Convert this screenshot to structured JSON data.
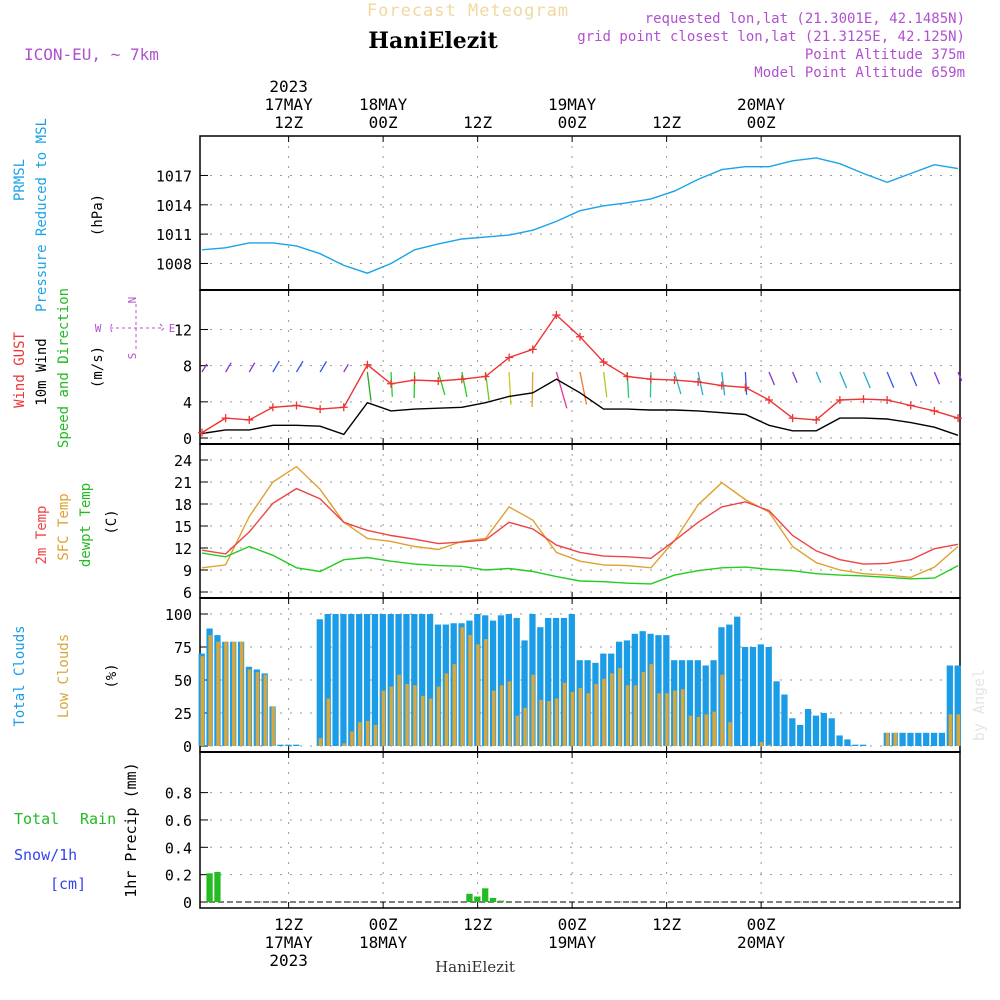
{
  "header": {
    "title": "Forecast Meteogram",
    "station": "HaniElezit",
    "model": "ICON-EU, ~ 7km",
    "requested": "requested lon,lat (21.3001E, 42.1485N)",
    "gridpoint": "grid point closest lon,lat (21.3125E, 42.125N)",
    "point_alt": "Point Altitude 375m",
    "model_alt": "Model Point Altitude 659m",
    "footer_station": "HaniElezit",
    "watermark": "by Angel"
  },
  "time_axis": {
    "top_labels": [
      {
        "l1": "2023",
        "l2": "17MAY",
        "l3": "12Z"
      },
      {
        "l1": "",
        "l2": "18MAY",
        "l3": "00Z"
      },
      {
        "l1": "",
        "l2": "",
        "l3": "12Z"
      },
      {
        "l1": "",
        "l2": "19MAY",
        "l3": "00Z"
      },
      {
        "l1": "",
        "l2": "",
        "l3": "12Z"
      },
      {
        "l1": "",
        "l2": "20MAY",
        "l3": "00Z"
      }
    ],
    "bottom_labels": [
      {
        "l1": "12Z",
        "l2": "17MAY",
        "l3": "2023"
      },
      {
        "l1": "00Z",
        "l2": "18MAY",
        "l3": ""
      },
      {
        "l1": "12Z",
        "l2": "",
        "l3": ""
      },
      {
        "l1": "00Z",
        "l2": "19MAY",
        "l3": ""
      },
      {
        "l1": "12Z",
        "l2": "",
        "l3": ""
      },
      {
        "l1": "00Z",
        "l2": "20MAY",
        "l3": ""
      }
    ]
  },
  "colors": {
    "pressure": "#1aa3e8",
    "gust": "#ee3333",
    "wind": "#000000",
    "temp2m": "#ee4444",
    "sfc": "#e0a030",
    "dewpt": "#22cc22",
    "total_cloud": "#1b9ce6",
    "low_cloud": "#d9a63a",
    "rain": "#22bb22",
    "snow": "#3344ee",
    "purple": "#b050d0"
  },
  "chart_data": [
    {
      "type": "line",
      "panel": "pressure",
      "ylabel": [
        "PRMSL",
        "Pressure Reduced to MSL",
        "(hPa)"
      ],
      "yticks": [
        1008,
        1011,
        1014,
        1017
      ],
      "ylim": [
        1005.9,
        1019.4
      ],
      "grid": true,
      "x_hours": [
        0,
        3,
        6,
        9,
        12,
        15,
        18,
        21,
        24,
        27,
        30,
        33,
        36,
        39,
        42,
        45,
        48,
        51,
        54,
        57,
        60,
        63,
        66,
        69,
        72,
        75,
        78,
        81,
        84,
        87,
        90,
        93,
        96
      ],
      "series": [
        {
          "values": [
            1009.4,
            1009.6,
            1010.1,
            1010.1,
            1009.8,
            1009.0,
            1007.8,
            1007.0,
            1008.0,
            1009.4,
            1010.0,
            1010.5,
            1010.7,
            1010.9,
            1011.4,
            1012.3,
            1013.4,
            1013.9,
            1014.2,
            1014.6,
            1015.4,
            1016.6,
            1017.6,
            1017.9,
            1017.9,
            1018.5,
            1018.8,
            1018.2,
            1017.2,
            1016.3,
            1017.2,
            1018.1,
            1017.7
          ]
        }
      ]
    },
    {
      "type": "line",
      "panel": "wind",
      "ylabel": [
        "Wind GUST",
        "10m Wind",
        "Speed and Direction",
        "(m/s)"
      ],
      "compass": {
        "n": "N",
        "s": "S",
        "w": "W",
        "e": "E"
      },
      "yticks": [
        0,
        4,
        8,
        12
      ],
      "ylim": [
        0,
        14.6
      ],
      "grid": true,
      "x_hours": [
        0,
        3,
        6,
        9,
        12,
        15,
        18,
        21,
        24,
        27,
        30,
        33,
        36,
        39,
        42,
        45,
        48,
        51,
        54,
        57,
        60,
        63,
        66,
        69,
        72,
        75,
        78,
        81,
        84,
        87,
        90,
        93,
        96
      ],
      "series": [
        {
          "name": "gust",
          "values": [
            0.6,
            2.2,
            2.0,
            3.4,
            3.6,
            3.2,
            3.4,
            8.1,
            6.0,
            6.4,
            6.3,
            6.5,
            6.8,
            8.9,
            9.8,
            13.6,
            11.2,
            8.4,
            6.8,
            6.5,
            6.4,
            6.2,
            5.8,
            5.6,
            4.2,
            2.2,
            2.0,
            4.2,
            4.3,
            4.2,
            3.6,
            3.0,
            2.2
          ]
        },
        {
          "name": "wind",
          "values": [
            0.5,
            0.9,
            0.9,
            1.4,
            1.4,
            1.3,
            0.4,
            3.9,
            3.0,
            3.2,
            3.3,
            3.4,
            3.9,
            4.6,
            5.0,
            6.5,
            5.0,
            3.2,
            3.2,
            3.1,
            3.1,
            3.0,
            2.8,
            2.6,
            1.4,
            0.8,
            0.8,
            2.2,
            2.2,
            2.1,
            1.7,
            1.2,
            0.3
          ]
        }
      ]
    },
    {
      "type": "line",
      "panel": "temperature",
      "ylabel": [
        "2m Temp",
        "SFC Temp",
        "dewpt Temp",
        "(C)"
      ],
      "yticks": [
        6,
        9,
        12,
        15,
        18,
        21,
        24
      ],
      "ylim": [
        6,
        24
      ],
      "grid": true,
      "x_hours": [
        0,
        3,
        6,
        9,
        12,
        15,
        18,
        21,
        24,
        27,
        30,
        33,
        36,
        39,
        42,
        45,
        48,
        51,
        54,
        57,
        60,
        63,
        66,
        69,
        72,
        75,
        78,
        81,
        84,
        87,
        90,
        93,
        96
      ],
      "series": [
        {
          "name": "2m",
          "values": [
            11.7,
            11.2,
            14.2,
            18.1,
            20.1,
            18.7,
            15.5,
            14.4,
            13.7,
            13.2,
            12.6,
            12.8,
            13.1,
            15.5,
            14.6,
            12.4,
            11.4,
            10.9,
            10.8,
            10.6,
            13.0,
            15.5,
            17.6,
            18.3,
            17.1,
            13.7,
            11.6,
            10.4,
            9.8,
            9.9,
            10.4,
            11.9,
            12.5
          ]
        },
        {
          "name": "sfc",
          "values": [
            9.3,
            9.7,
            16.3,
            21.0,
            23.1,
            20.0,
            15.5,
            13.3,
            12.9,
            12.2,
            11.8,
            12.9,
            13.3,
            17.6,
            15.8,
            11.4,
            10.2,
            9.7,
            9.6,
            9.3,
            13.0,
            17.9,
            20.9,
            18.6,
            16.9,
            12.2,
            10.0,
            9.0,
            8.5,
            8.3,
            8.0,
            9.4,
            12.2
          ]
        },
        {
          "name": "dewpt",
          "values": [
            11.3,
            10.8,
            12.2,
            11.0,
            9.3,
            8.8,
            10.4,
            10.7,
            10.2,
            9.8,
            9.6,
            9.5,
            9.0,
            9.2,
            8.8,
            8.1,
            7.5,
            7.4,
            7.2,
            7.1,
            8.3,
            8.9,
            9.3,
            9.4,
            9.1,
            8.9,
            8.5,
            8.3,
            8.2,
            8.0,
            7.8,
            7.9,
            9.6
          ]
        }
      ]
    },
    {
      "type": "bar",
      "panel": "clouds",
      "ylabel": [
        "Total Clouds",
        "Low Clouds",
        "(%)"
      ],
      "yticks": [
        0,
        25,
        50,
        75,
        100
      ],
      "ylim": [
        0,
        100
      ],
      "grid": true,
      "x_hours": [
        0,
        1,
        2,
        3,
        4,
        5,
        6,
        7,
        8,
        9,
        10,
        11,
        12,
        13,
        14,
        15,
        16,
        17,
        18,
        19,
        20,
        21,
        22,
        23,
        24,
        25,
        26,
        27,
        28,
        29,
        30,
        31,
        32,
        33,
        34,
        35,
        36,
        37,
        38,
        39,
        40,
        41,
        42,
        43,
        44,
        45,
        46,
        47,
        48,
        49,
        50,
        51,
        52,
        53,
        54,
        55,
        56,
        57,
        58,
        59,
        60,
        61,
        62,
        63,
        64,
        65,
        66,
        67,
        68,
        69,
        70,
        71,
        72,
        73,
        74,
        75,
        76,
        77,
        78,
        79,
        80,
        81,
        82,
        83,
        84,
        85,
        86,
        87,
        88,
        89,
        90,
        91,
        92,
        93,
        94,
        95,
        96
      ],
      "series": [
        {
          "name": "total",
          "values": [
            70,
            89,
            84,
            79,
            79,
            79,
            60,
            58,
            55,
            30,
            1,
            1,
            1,
            0,
            0,
            96,
            100,
            100,
            100,
            100,
            100,
            100,
            100,
            100,
            100,
            100,
            100,
            100,
            100,
            100,
            92,
            92,
            93,
            93,
            95,
            100,
            99,
            95,
            99,
            100,
            97,
            80,
            100,
            90,
            97,
            97,
            97,
            100,
            65,
            65,
            63,
            70,
            70,
            79,
            80,
            85,
            87,
            85,
            84,
            84,
            65,
            65,
            65,
            65,
            61,
            65,
            90,
            92,
            98,
            75,
            75,
            77,
            75,
            49,
            39,
            21,
            16,
            28,
            23,
            25,
            21,
            8,
            5,
            1,
            1,
            0,
            0,
            10,
            10,
            10,
            10,
            10,
            10,
            10,
            10,
            61,
            61
          ]
        },
        {
          "name": "low",
          "values": [
            68,
            84,
            79,
            79,
            79,
            79,
            58,
            56,
            54,
            30,
            0,
            0,
            0,
            0,
            0,
            6,
            36,
            0,
            2,
            11,
            18,
            19,
            16,
            42,
            45,
            54,
            47,
            46,
            38,
            36,
            45,
            55,
            62,
            90,
            84,
            77,
            81,
            42,
            46,
            49,
            23,
            29,
            54,
            35,
            34,
            36,
            48,
            41,
            44,
            40,
            47,
            51,
            55,
            59,
            46,
            46,
            56,
            62,
            40,
            40,
            42,
            43,
            23,
            22,
            24,
            26,
            54,
            18,
            0,
            0,
            0,
            3,
            1,
            0,
            0,
            0,
            0,
            0,
            0,
            0,
            0,
            0,
            0,
            0,
            0,
            0,
            0,
            10,
            10,
            0,
            0,
            0,
            0,
            0,
            0,
            24,
            24
          ]
        }
      ]
    },
    {
      "type": "bar",
      "panel": "precipitation",
      "ylabel": [
        "1hr Precip (mm)"
      ],
      "legend": {
        "total": "Total",
        "rain": "Rain",
        "snow": "Snow/1h",
        "snow_unit": "[cm]"
      },
      "yticks": [
        0,
        0.2,
        0.4,
        0.6,
        0.8
      ],
      "ylim": [
        0,
        0.98
      ],
      "grid": true,
      "x_hours": [
        1,
        2,
        34,
        35,
        36,
        37,
        38
      ],
      "series": [
        {
          "name": "rain",
          "values": [
            0.21,
            0.22,
            0.06,
            0.04,
            0.1,
            0.03,
            0.01
          ]
        }
      ]
    }
  ]
}
